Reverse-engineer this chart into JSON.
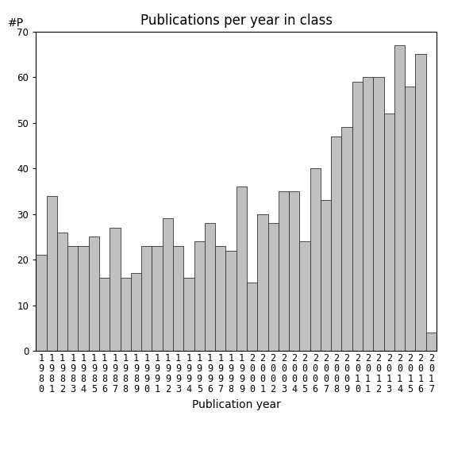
{
  "title": "Publications per year in class",
  "xlabel": "Publication year",
  "ylabel": "#P",
  "years": [
    "1980",
    "1981",
    "1982",
    "1983",
    "1984",
    "1985",
    "1986",
    "1987",
    "1988",
    "1989",
    "1990",
    "1991",
    "1992",
    "1993",
    "1994",
    "1995",
    "1996",
    "1997",
    "1998",
    "1999",
    "2000",
    "2001",
    "2002",
    "2003",
    "2004",
    "2005",
    "2006",
    "2007",
    "2008",
    "2009",
    "2010",
    "2011",
    "2012",
    "2013",
    "2014",
    "2015",
    "2016",
    "2017"
  ],
  "values": [
    21,
    34,
    26,
    23,
    23,
    25,
    16,
    27,
    16,
    17,
    23,
    23,
    29,
    23,
    16,
    24,
    28,
    23,
    22,
    36,
    15,
    30,
    28,
    35,
    35,
    24,
    40,
    33,
    47,
    49,
    59,
    60,
    60,
    52,
    67,
    58,
    65,
    4
  ],
  "bar_color": "#c0c0c0",
  "bar_edgecolor": "#333333",
  "ylim": [
    0,
    70
  ],
  "yticks": [
    0,
    10,
    20,
    30,
    40,
    50,
    60,
    70
  ],
  "background_color": "#ffffff",
  "title_fontsize": 12,
  "axis_fontsize": 10,
  "tick_fontsize": 8.5
}
